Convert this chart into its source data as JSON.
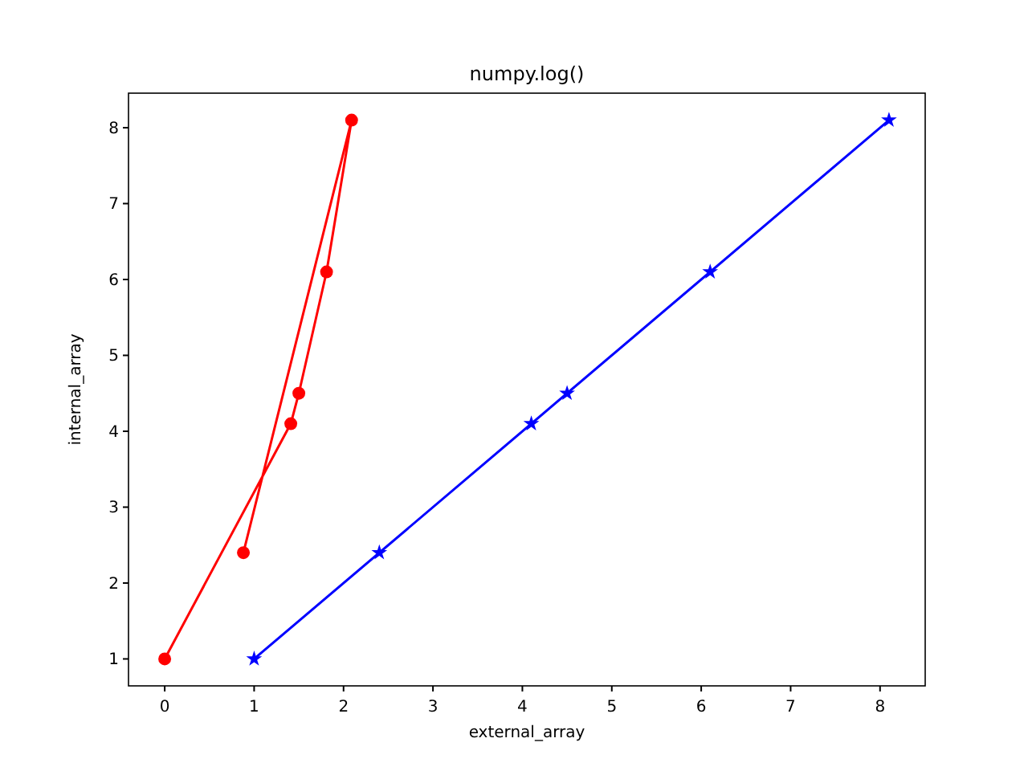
{
  "chart_data": {
    "type": "line",
    "title": "numpy.log()",
    "xlabel": "external_array",
    "ylabel": "internal_array",
    "xlim": [
      -0.405,
      8.505
    ],
    "ylim": [
      0.645,
      8.455
    ],
    "xticks": [
      0,
      1,
      2,
      3,
      4,
      5,
      6,
      7,
      8
    ],
    "yticks": [
      1,
      2,
      3,
      4,
      5,
      6,
      7,
      8
    ],
    "grid": false,
    "series": [
      {
        "color": "#ff0000",
        "marker": "circle",
        "x": [
          0,
          1.41,
          1.5,
          1.81,
          2.09,
          0.88
        ],
        "values": [
          1,
          4.1,
          4.5,
          6.1,
          8.1,
          2.4
        ]
      },
      {
        "color": "#0000ff",
        "marker": "star",
        "x": [
          1,
          4.1,
          4.5,
          6.1,
          8.1,
          2.4
        ],
        "values": [
          1,
          4.1,
          4.5,
          6.1,
          8.1,
          2.4
        ]
      }
    ]
  }
}
